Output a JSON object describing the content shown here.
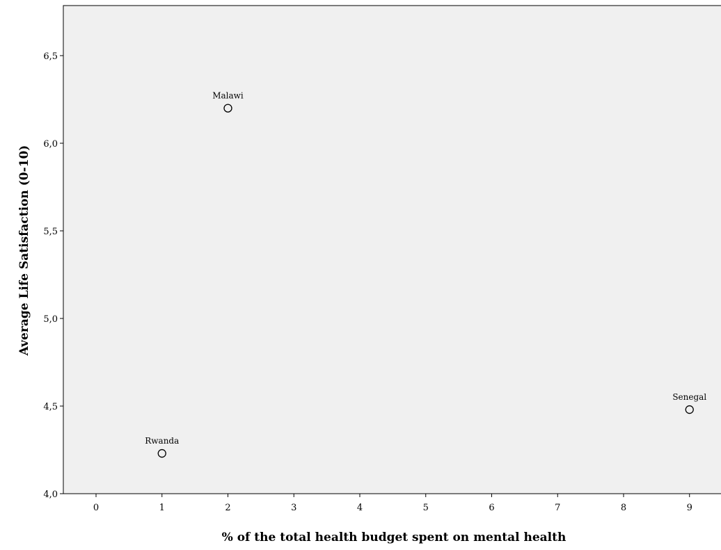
{
  "chart_data": {
    "type": "scatter",
    "title": "",
    "xlabel": "% of the total health budget spent on mental health",
    "ylabel": "Average Life Satisfaction (0-10)",
    "xlim": [
      -0.5,
      9.5
    ],
    "ylim": [
      4.0,
      6.75
    ],
    "x_ticks": [
      0,
      1,
      2,
      3,
      4,
      5,
      6,
      7,
      8,
      9
    ],
    "x_tick_labels": [
      "0",
      "1",
      "2",
      "3",
      "4",
      "5",
      "6",
      "7",
      "8",
      "9"
    ],
    "y_ticks": [
      4.0,
      4.5,
      5.0,
      5.5,
      6.0,
      6.5
    ],
    "y_tick_labels": [
      "4,0",
      "4,5",
      "5,0",
      "5,5",
      "6,0",
      "6,5"
    ],
    "grid": false,
    "plot_background": "#f0f0f0",
    "marker": "open-circle",
    "points": [
      {
        "label": "Malawi",
        "x": 2,
        "y": 6.2
      },
      {
        "label": "Rwanda",
        "x": 1,
        "y": 4.23
      },
      {
        "label": "Senegal",
        "x": 9,
        "y": 4.48
      }
    ]
  }
}
